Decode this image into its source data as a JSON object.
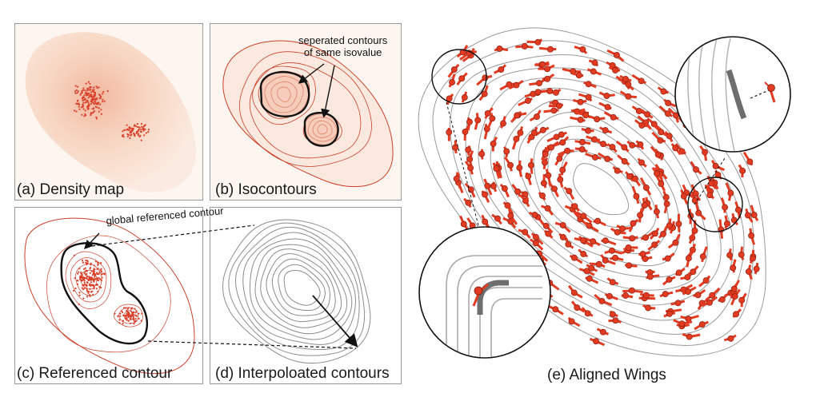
{
  "panels": {
    "a": {
      "caption": "(a) Density map"
    },
    "b": {
      "caption": "(b) Isocontours",
      "annotation_line1": "seperated contours",
      "annotation_line2": "of same isovalue"
    },
    "c": {
      "caption": "(c) Referenced contour",
      "annotation": "global referenced contour"
    },
    "d": {
      "caption": "(d) Interpoloated contours"
    },
    "e": {
      "caption": "(e) Aligned Wings"
    }
  },
  "colors": {
    "density_fill": "#f7dcc8",
    "point_red": "#d9412b",
    "contour_red": "#c8402a",
    "contour_gray": "#8c8c8c",
    "wing_red": "#e23b22",
    "panel_border": "#9a9a9a"
  }
}
